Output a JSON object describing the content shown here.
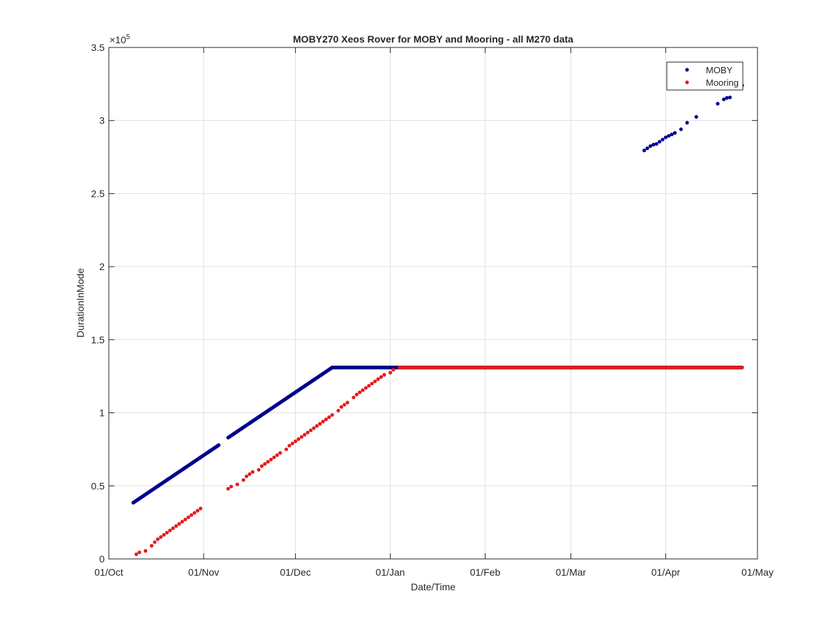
{
  "chart_data": {
    "type": "scatter",
    "title": "MOBY270 Xeos Rover for MOBY and Mooring - all M270 data",
    "xlabel": "Date/Time",
    "ylabel": "DurationInMode",
    "y_exponent_label": "×10",
    "y_exponent": "5",
    "xlim": [
      "2018-10-01",
      "2019-05-01"
    ],
    "ylim": [
      0,
      350000
    ],
    "x_ticks": [
      {
        "date": "2018-10-01",
        "label": "01/Oct"
      },
      {
        "date": "2018-11-01",
        "label": "01/Nov"
      },
      {
        "date": "2018-12-01",
        "label": "01/Dec"
      },
      {
        "date": "2019-01-01",
        "label": "01/Jan"
      },
      {
        "date": "2019-02-01",
        "label": "01/Feb"
      },
      {
        "date": "2019-03-01",
        "label": "01/Mar"
      },
      {
        "date": "2019-04-01",
        "label": "01/Apr"
      },
      {
        "date": "2019-05-01",
        "label": "01/May"
      }
    ],
    "y_ticks": [
      {
        "value": 0,
        "label": "0"
      },
      {
        "value": 50000,
        "label": "0.5"
      },
      {
        "value": 100000,
        "label": "1"
      },
      {
        "value": 150000,
        "label": "1.5"
      },
      {
        "value": 200000,
        "label": "2"
      },
      {
        "value": 250000,
        "label": "2.5"
      },
      {
        "value": 300000,
        "label": "3"
      },
      {
        "value": 350000,
        "label": "3.5"
      }
    ],
    "grid": true,
    "legend_position": "top-right",
    "series": [
      {
        "name": "MOBY",
        "color": "#00008b",
        "segments": [
          {
            "type": "dense_linear",
            "x0": "2018-10-09",
            "y0": 38500,
            "x1": "2018-11-06",
            "y1": 78000
          },
          {
            "type": "dense_linear",
            "x0": "2018-11-09",
            "y0": 83000,
            "x1": "2018-12-13",
            "y1": 131000
          },
          {
            "type": "dense_linear",
            "x0": "2018-12-13",
            "y0": 131000,
            "x1": "2019-04-26",
            "y1": 131000
          }
        ],
        "points": [
          {
            "x": "2019-03-25",
            "y": 279500
          },
          {
            "x": "2019-03-26",
            "y": 281000
          },
          {
            "x": "2019-03-27",
            "y": 282500
          },
          {
            "x": "2019-03-28",
            "y": 283500
          },
          {
            "x": "2019-03-29",
            "y": 284000
          },
          {
            "x": "2019-03-30",
            "y": 285500
          },
          {
            "x": "2019-03-31",
            "y": 287000
          },
          {
            "x": "2019-04-01",
            "y": 288500
          },
          {
            "x": "2019-04-02",
            "y": 289500
          },
          {
            "x": "2019-04-03",
            "y": 290500
          },
          {
            "x": "2019-04-04",
            "y": 291500
          },
          {
            "x": "2019-04-06",
            "y": 294000
          },
          {
            "x": "2019-04-08",
            "y": 298500
          },
          {
            "x": "2019-04-11",
            "y": 302500
          },
          {
            "x": "2019-04-18",
            "y": 311500
          },
          {
            "x": "2019-04-20",
            "y": 314500
          },
          {
            "x": "2019-04-21",
            "y": 315500
          },
          {
            "x": "2019-04-22",
            "y": 315800
          },
          {
            "x": "2019-04-26",
            "y": 324000
          }
        ]
      },
      {
        "name": "Mooring",
        "color": "#e41a1c",
        "points": [
          {
            "x": "2018-10-10",
            "y": 3200
          },
          {
            "x": "2018-10-11",
            "y": 4500
          },
          {
            "x": "2018-10-13",
            "y": 5500
          },
          {
            "x": "2018-10-15",
            "y": 9000
          },
          {
            "x": "2018-10-16",
            "y": 11500
          },
          {
            "x": "2018-10-17",
            "y": 13500
          },
          {
            "x": "2018-10-18",
            "y": 15000
          },
          {
            "x": "2018-10-19",
            "y": 16500
          },
          {
            "x": "2018-10-20",
            "y": 18000
          },
          {
            "x": "2018-10-21",
            "y": 19500
          },
          {
            "x": "2018-10-22",
            "y": 21000
          },
          {
            "x": "2018-10-23",
            "y": 22500
          },
          {
            "x": "2018-10-24",
            "y": 24000
          },
          {
            "x": "2018-10-25",
            "y": 25500
          },
          {
            "x": "2018-10-26",
            "y": 27000
          },
          {
            "x": "2018-10-27",
            "y": 28500
          },
          {
            "x": "2018-10-28",
            "y": 30000
          },
          {
            "x": "2018-10-29",
            "y": 31500
          },
          {
            "x": "2018-10-30",
            "y": 33000
          },
          {
            "x": "2018-10-31",
            "y": 34500
          },
          {
            "x": "2018-11-09",
            "y": 48000
          },
          {
            "x": "2018-11-10",
            "y": 49500
          },
          {
            "x": "2018-11-12",
            "y": 51000
          },
          {
            "x": "2018-11-14",
            "y": 54000
          },
          {
            "x": "2018-11-15",
            "y": 56500
          },
          {
            "x": "2018-11-16",
            "y": 58000
          },
          {
            "x": "2018-11-17",
            "y": 59500
          },
          {
            "x": "2018-11-19",
            "y": 61000
          },
          {
            "x": "2018-11-20",
            "y": 63500
          },
          {
            "x": "2018-11-21",
            "y": 65000
          },
          {
            "x": "2018-11-22",
            "y": 66500
          },
          {
            "x": "2018-11-23",
            "y": 68000
          },
          {
            "x": "2018-11-24",
            "y": 69500
          },
          {
            "x": "2018-11-25",
            "y": 71000
          },
          {
            "x": "2018-11-26",
            "y": 72500
          },
          {
            "x": "2018-11-28",
            "y": 75000
          },
          {
            "x": "2018-11-29",
            "y": 77500
          },
          {
            "x": "2018-11-30",
            "y": 79000
          },
          {
            "x": "2018-12-01",
            "y": 80500
          },
          {
            "x": "2018-12-02",
            "y": 82000
          },
          {
            "x": "2018-12-03",
            "y": 83500
          },
          {
            "x": "2018-12-04",
            "y": 85000
          },
          {
            "x": "2018-12-05",
            "y": 86500
          },
          {
            "x": "2018-12-06",
            "y": 88000
          },
          {
            "x": "2018-12-07",
            "y": 89500
          },
          {
            "x": "2018-12-08",
            "y": 91000
          },
          {
            "x": "2018-12-09",
            "y": 92500
          },
          {
            "x": "2018-12-10",
            "y": 94000
          },
          {
            "x": "2018-12-11",
            "y": 95500
          },
          {
            "x": "2018-12-12",
            "y": 97000
          },
          {
            "x": "2018-12-13",
            "y": 98500
          },
          {
            "x": "2018-12-15",
            "y": 101500
          },
          {
            "x": "2018-12-16",
            "y": 104000
          },
          {
            "x": "2018-12-17",
            "y": 105500
          },
          {
            "x": "2018-12-18",
            "y": 107000
          },
          {
            "x": "2018-12-20",
            "y": 110500
          },
          {
            "x": "2018-12-21",
            "y": 112500
          },
          {
            "x": "2018-12-22",
            "y": 114000
          },
          {
            "x": "2018-12-23",
            "y": 115500
          },
          {
            "x": "2018-12-24",
            "y": 117000
          },
          {
            "x": "2018-12-25",
            "y": 118500
          },
          {
            "x": "2018-12-26",
            "y": 120000
          },
          {
            "x": "2018-12-27",
            "y": 121500
          },
          {
            "x": "2018-12-28",
            "y": 123000
          },
          {
            "x": "2018-12-29",
            "y": 124500
          },
          {
            "x": "2018-12-30",
            "y": 126000
          },
          {
            "x": "2019-01-01",
            "y": 127500
          },
          {
            "x": "2019-01-02",
            "y": 129500
          }
        ],
        "segments": [
          {
            "type": "sparse_linear",
            "x0": "2019-01-04",
            "y0": 131000,
            "x1": "2019-04-26",
            "y1": 131000
          }
        ]
      }
    ]
  }
}
